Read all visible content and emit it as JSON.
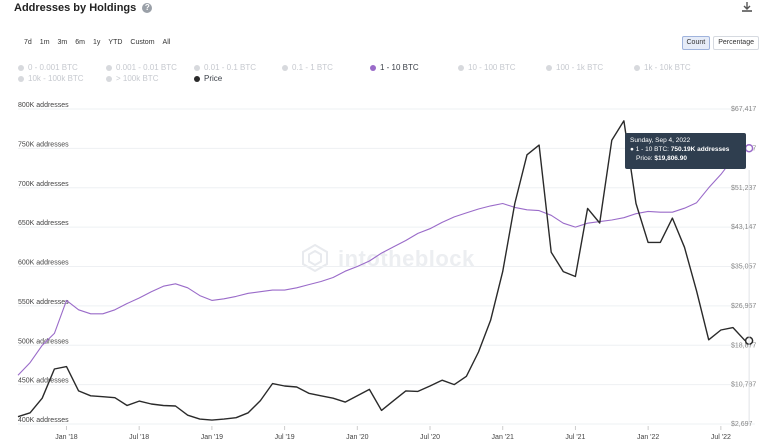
{
  "header": {
    "title": "Addresses by Holdings",
    "help_icon": "question-circle-icon",
    "download_icon": "download-icon"
  },
  "ranges": [
    "7d",
    "1m",
    "3m",
    "6m",
    "1y",
    "YTD",
    "Custom",
    "All"
  ],
  "modes": [
    {
      "label": "Count",
      "active": true
    },
    {
      "label": "Percentage",
      "active": false
    }
  ],
  "legend_rows": [
    [
      {
        "label": "0 - 0.001 BTC",
        "state": "off"
      },
      {
        "label": "0.001 - 0.01 BTC",
        "state": "off"
      },
      {
        "label": "0.01 - 0.1 BTC",
        "state": "off"
      },
      {
        "label": "0.1 - 1 BTC",
        "state": "off"
      },
      {
        "label": "1 - 10 BTC",
        "state": "on",
        "color": "#9a6bc9"
      },
      {
        "label": "10 - 100 BTC",
        "state": "off"
      },
      {
        "label": "100 - 1k BTC",
        "state": "off"
      },
      {
        "label": "1k - 10k BTC",
        "state": "off"
      }
    ],
    [
      {
        "label": "10k - 100k BTC",
        "state": "off"
      },
      {
        "label": "> 100k BTC",
        "state": "off"
      },
      {
        "label": "Price",
        "state": "on",
        "color": "#2a2a2a"
      }
    ]
  ],
  "watermark": "intotheblock",
  "tooltip": {
    "date": "Sunday, Sep 4, 2022",
    "series_prefix": "● 1 - 10 BTC: ",
    "series_value": "750.19K addresses",
    "price_prefix": "Price: ",
    "price_value": "$19,806.90"
  },
  "chart_data": {
    "type": "line",
    "title": "Addresses by Holdings",
    "x_ticks": [
      "Jan '18",
      "Jul '18",
      "Jan '19",
      "Jul '19",
      "Jan '20",
      "Jul '20",
      "Jan '21",
      "Jul '21",
      "Jan '22",
      "Jul '22"
    ],
    "y_left_ticks": [
      "400K addresses",
      "450K addresses",
      "500K addresses",
      "550K addresses",
      "600K addresses",
      "650K addresses",
      "700K addresses",
      "750K addresses",
      "800K addresses"
    ],
    "y_left_range": [
      400000,
      800000
    ],
    "y_right_ticks": [
      "$2,697",
      "$10,787",
      "$18,877",
      "$26,967",
      "$35,057",
      "$43,147",
      "$51,237",
      "$59,327",
      "$67,417"
    ],
    "y_right_range": [
      2697,
      67417
    ],
    "grid": true,
    "series": [
      {
        "name": "1 - 10 BTC",
        "color": "#9a6bc9",
        "axis": "left",
        "points": [
          [
            "2017-09",
            462000
          ],
          [
            "2017-10",
            478000
          ],
          [
            "2017-11",
            500000
          ],
          [
            "2017-12",
            515000
          ],
          [
            "2018-01",
            557000
          ],
          [
            "2018-02",
            545000
          ],
          [
            "2018-03",
            540000
          ],
          [
            "2018-04",
            540000
          ],
          [
            "2018-05",
            545000
          ],
          [
            "2018-06",
            553000
          ],
          [
            "2018-07",
            560000
          ],
          [
            "2018-08",
            568000
          ],
          [
            "2018-09",
            575000
          ],
          [
            "2018-10",
            578000
          ],
          [
            "2018-11",
            573000
          ],
          [
            "2018-12",
            563000
          ],
          [
            "2019-01",
            557000
          ],
          [
            "2019-02",
            559000
          ],
          [
            "2019-03",
            562000
          ],
          [
            "2019-04",
            566000
          ],
          [
            "2019-05",
            568000
          ],
          [
            "2019-06",
            570000
          ],
          [
            "2019-07",
            570000
          ],
          [
            "2019-08",
            573000
          ],
          [
            "2019-09",
            577000
          ],
          [
            "2019-10",
            581000
          ],
          [
            "2019-11",
            586000
          ],
          [
            "2019-12",
            594000
          ],
          [
            "2020-01",
            600000
          ],
          [
            "2020-02",
            607000
          ],
          [
            "2020-03",
            617000
          ],
          [
            "2020-04",
            625000
          ],
          [
            "2020-05",
            633000
          ],
          [
            "2020-06",
            642000
          ],
          [
            "2020-07",
            648000
          ],
          [
            "2020-08",
            656000
          ],
          [
            "2020-09",
            663000
          ],
          [
            "2020-10",
            668000
          ],
          [
            "2020-11",
            673000
          ],
          [
            "2020-12",
            677000
          ],
          [
            "2021-01",
            680000
          ],
          [
            "2021-02",
            675000
          ],
          [
            "2021-03",
            672000
          ],
          [
            "2021-04",
            671000
          ],
          [
            "2021-05",
            665000
          ],
          [
            "2021-06",
            655000
          ],
          [
            "2021-07",
            650000
          ],
          [
            "2021-08",
            655000
          ],
          [
            "2021-09",
            657000
          ],
          [
            "2021-10",
            659000
          ],
          [
            "2021-11",
            662000
          ],
          [
            "2021-12",
            667000
          ],
          [
            "2022-01",
            670000
          ],
          [
            "2022-02",
            669000
          ],
          [
            "2022-03",
            669000
          ],
          [
            "2022-04",
            674000
          ],
          [
            "2022-05",
            681000
          ],
          [
            "2022-06",
            700000
          ],
          [
            "2022-07",
            717000
          ],
          [
            "2022-08",
            737000
          ],
          [
            "2022-09",
            750190
          ]
        ]
      },
      {
        "name": "Price",
        "color": "#2a2a2a",
        "axis": "right",
        "points": [
          [
            "2017-09",
            4200
          ],
          [
            "2017-10",
            5000
          ],
          [
            "2017-11",
            8000
          ],
          [
            "2017-12",
            14000
          ],
          [
            "2018-01",
            14500
          ],
          [
            "2018-02",
            9500
          ],
          [
            "2018-03",
            8500
          ],
          [
            "2018-04",
            8300
          ],
          [
            "2018-05",
            8100
          ],
          [
            "2018-06",
            6500
          ],
          [
            "2018-07",
            7400
          ],
          [
            "2018-08",
            6800
          ],
          [
            "2018-09",
            6500
          ],
          [
            "2018-10",
            6400
          ],
          [
            "2018-11",
            4500
          ],
          [
            "2018-12",
            3700
          ],
          [
            "2019-01",
            3500
          ],
          [
            "2019-02",
            3700
          ],
          [
            "2019-03",
            4000
          ],
          [
            "2019-04",
            5000
          ],
          [
            "2019-05",
            7500
          ],
          [
            "2019-06",
            11000
          ],
          [
            "2019-07",
            10500
          ],
          [
            "2019-08",
            10300
          ],
          [
            "2019-09",
            9000
          ],
          [
            "2019-10",
            8500
          ],
          [
            "2019-11",
            8000
          ],
          [
            "2019-12",
            7200
          ],
          [
            "2020-01",
            8500
          ],
          [
            "2020-02",
            9800
          ],
          [
            "2020-03",
            5500
          ],
          [
            "2020-04",
            7500
          ],
          [
            "2020-05",
            9500
          ],
          [
            "2020-06",
            9400
          ],
          [
            "2020-07",
            10500
          ],
          [
            "2020-08",
            11700
          ],
          [
            "2020-09",
            10800
          ],
          [
            "2020-10",
            12500
          ],
          [
            "2020-11",
            17500
          ],
          [
            "2020-12",
            24000
          ],
          [
            "2021-01",
            34000
          ],
          [
            "2021-02",
            48000
          ],
          [
            "2021-03",
            58000
          ],
          [
            "2021-04",
            60000
          ],
          [
            "2021-05",
            38000
          ],
          [
            "2021-06",
            34000
          ],
          [
            "2021-07",
            33000
          ],
          [
            "2021-08",
            47000
          ],
          [
            "2021-09",
            44000
          ],
          [
            "2021-10",
            61000
          ],
          [
            "2021-11",
            65000
          ],
          [
            "2021-12",
            48000
          ],
          [
            "2022-01",
            40000
          ],
          [
            "2022-02",
            40000
          ],
          [
            "2022-03",
            45000
          ],
          [
            "2022-04",
            39000
          ],
          [
            "2022-05",
            30000
          ],
          [
            "2022-06",
            20000
          ],
          [
            "2022-07",
            22000
          ],
          [
            "2022-08",
            22500
          ],
          [
            "2022-09",
            19806.9
          ]
        ]
      }
    ]
  }
}
